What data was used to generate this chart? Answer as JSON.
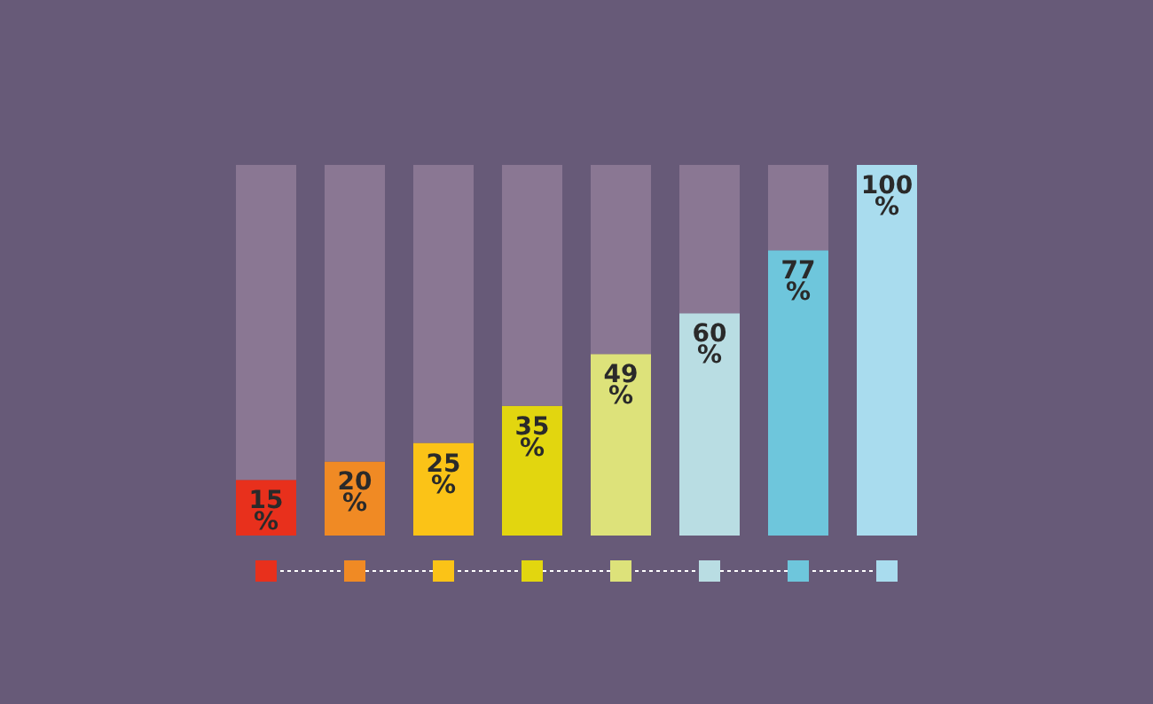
{
  "chart_data": {
    "type": "bar",
    "stacked": true,
    "categories": [
      null,
      null,
      null,
      null,
      null,
      null,
      null,
      null
    ],
    "series": [
      {
        "values": [
          15,
          20,
          25,
          35,
          49,
          60,
          77,
          100
        ],
        "colors": [
          "#e8301c",
          "#f08a24",
          "#fbc317",
          "#e2d60f",
          "#dde27a",
          "#b9dde3",
          "#6ec6dc",
          "#a9dcee"
        ],
        "value_labels": [
          "15%",
          "20%",
          "25%",
          "35%",
          "49%",
          "60%",
          "77%",
          "100%"
        ]
      },
      {
        "values": [
          85,
          80,
          75,
          65,
          51,
          40,
          23,
          0
        ],
        "color": "#8a7793",
        "value_labels": [
          null,
          null,
          null,
          null,
          null,
          null,
          null,
          null
        ]
      }
    ]
  }
}
